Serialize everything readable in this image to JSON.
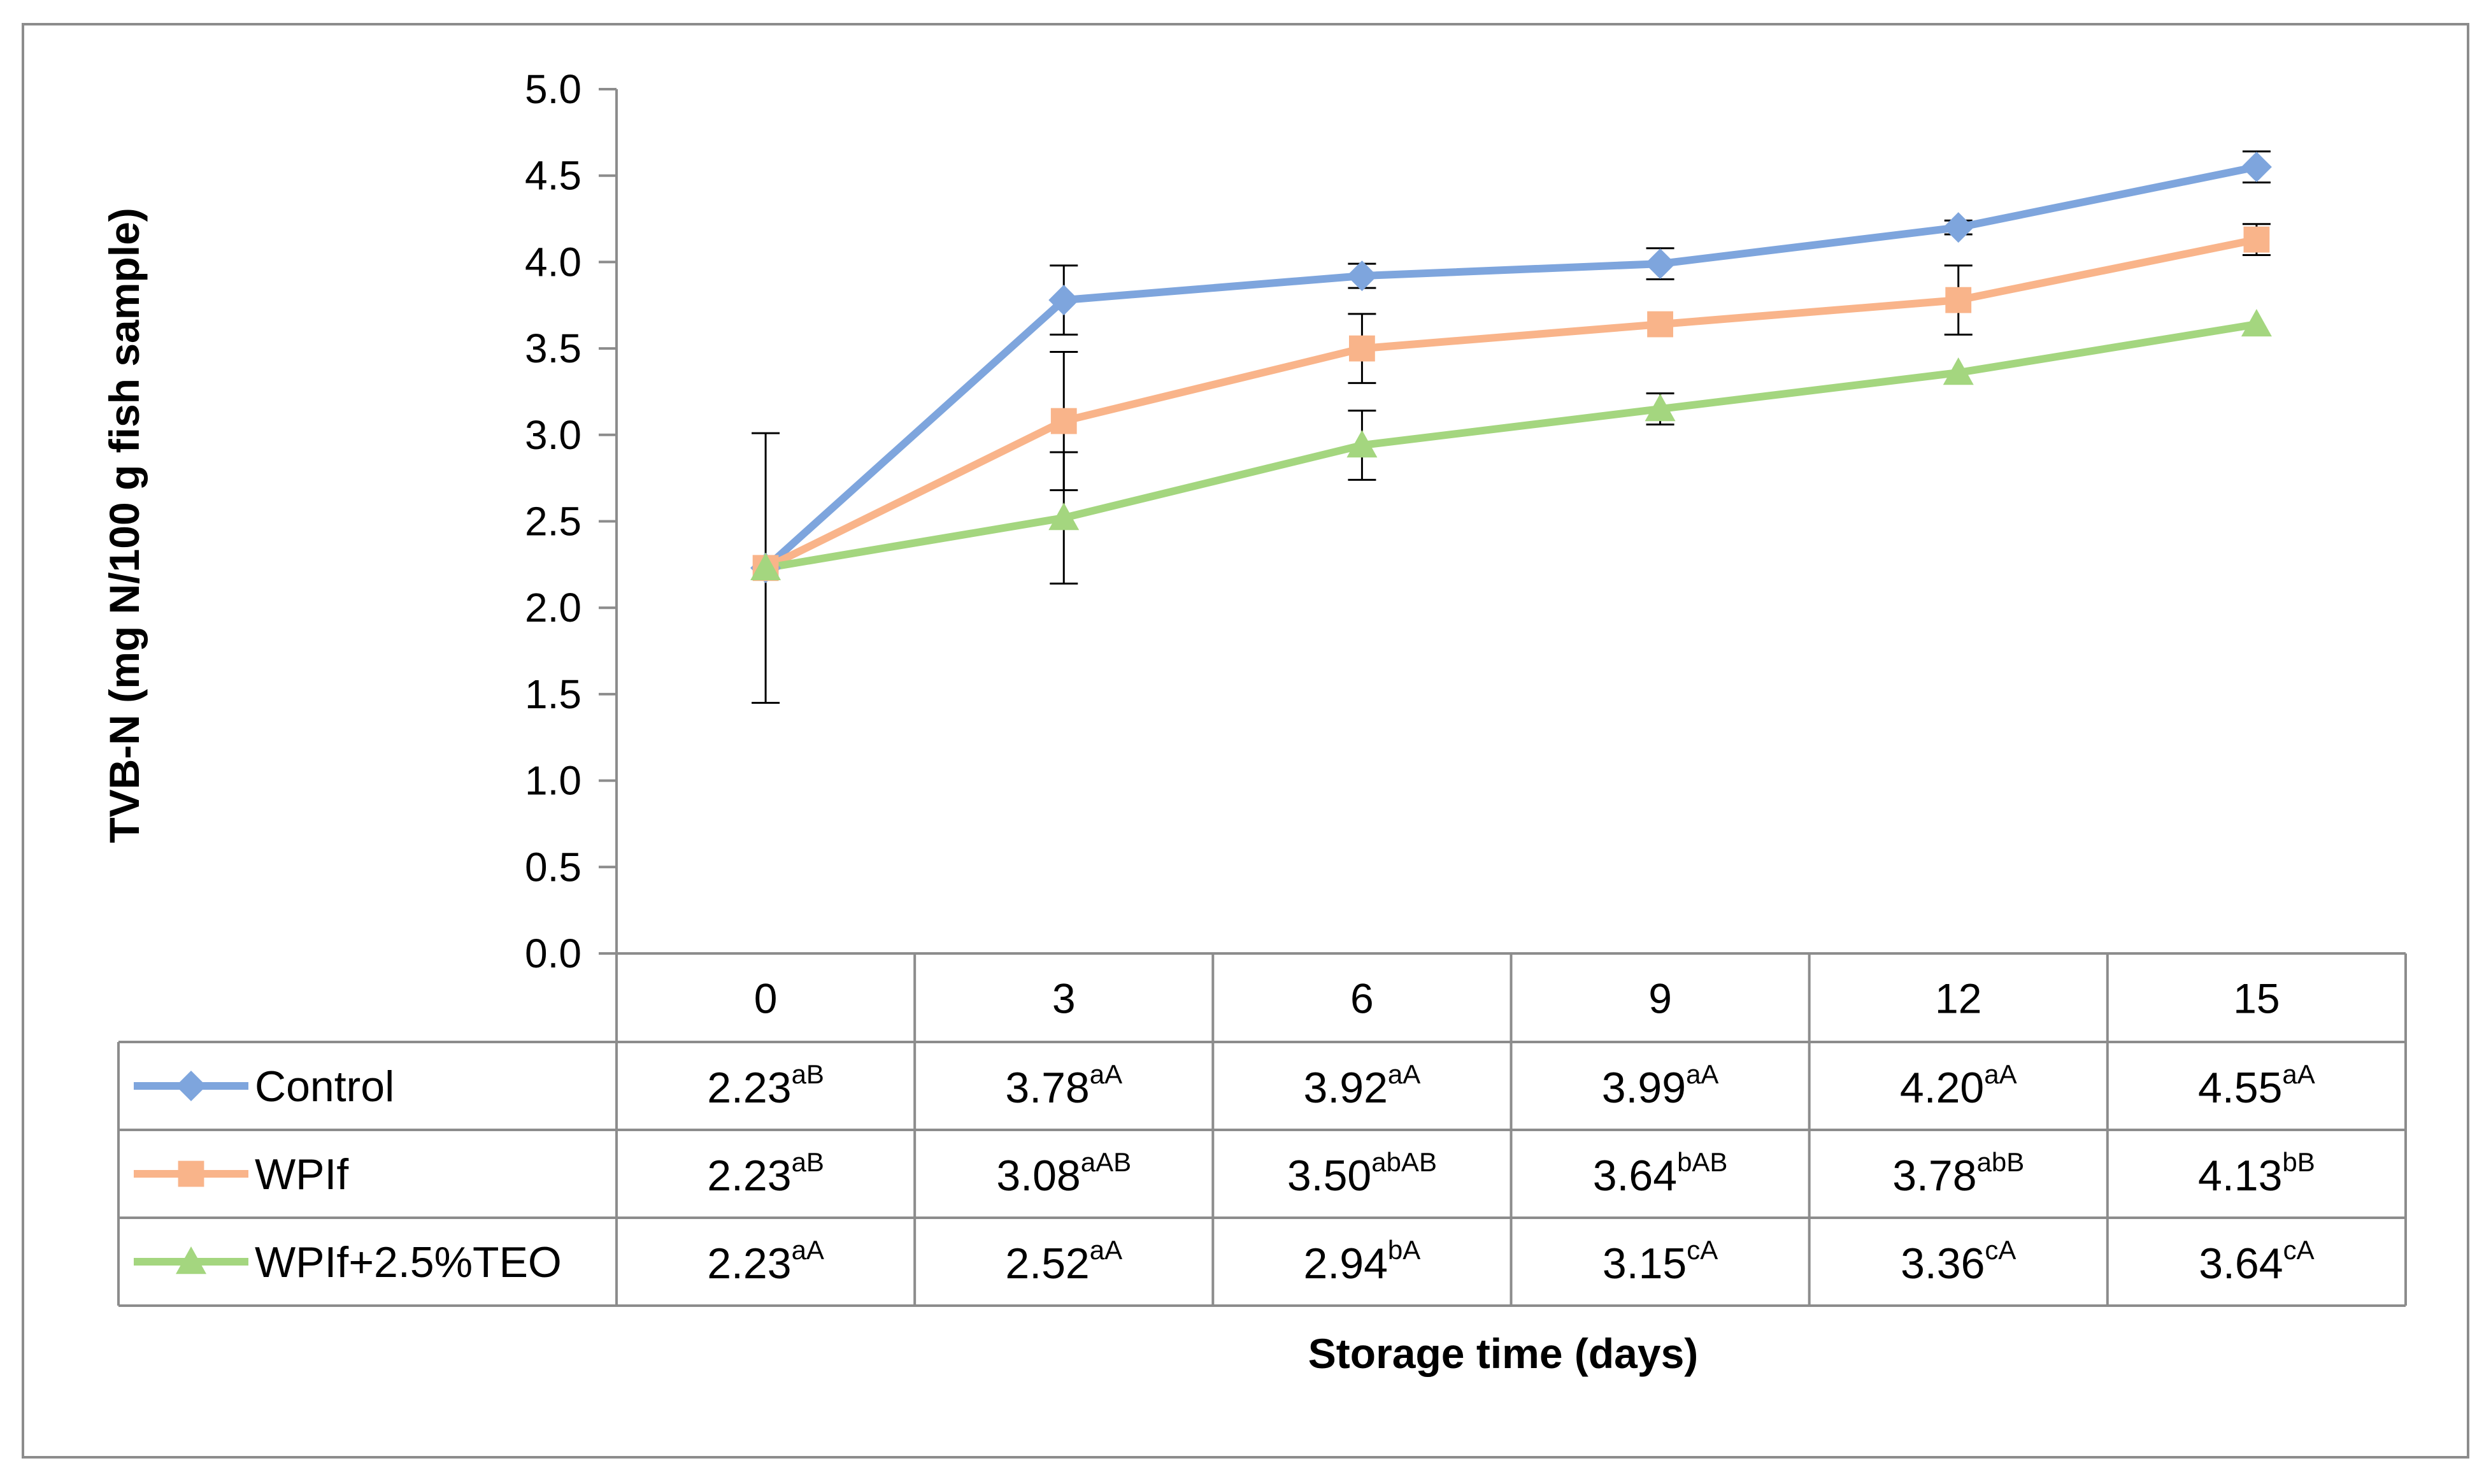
{
  "chart_data": {
    "type": "line",
    "ylabel": "TVB-N (mg N/100 g fish sample)",
    "xlabel": "Storage time (days)",
    "categories": [
      "0",
      "3",
      "6",
      "9",
      "12",
      "15"
    ],
    "ylim": [
      0,
      5
    ],
    "y_ticks": [
      "0.0",
      "0.5",
      "1.0",
      "1.5",
      "2.0",
      "2.5",
      "3.0",
      "3.5",
      "4.0",
      "4.5",
      "5.0"
    ],
    "grid": false,
    "legend": "data-table",
    "series": [
      {
        "name": "Control",
        "color": "#7ea5dd",
        "marker": "diamond",
        "values": [
          2.23,
          3.78,
          3.92,
          3.99,
          4.2,
          4.55
        ],
        "error": [
          0.78,
          0.2,
          0.07,
          0.09,
          0.04,
          0.09
        ],
        "table_values": [
          "2.23",
          "3.78",
          "3.92",
          "3.99",
          "4.20",
          "4.55"
        ],
        "superscripts": [
          "aB",
          "aA",
          "aA",
          "aA",
          "aA",
          "aA"
        ]
      },
      {
        "name": "WPIf",
        "color": "#f9b48a",
        "marker": "square",
        "values": [
          2.23,
          3.08,
          3.5,
          3.64,
          3.78,
          4.13
        ],
        "error": [
          0.0,
          0.4,
          0.2,
          0.0,
          0.2,
          0.09
        ],
        "table_values": [
          "2.23",
          "3.08",
          "3.50",
          "3.64",
          "3.78",
          "4.13"
        ],
        "superscripts": [
          "aB",
          "aAB",
          "abAB",
          "bAB",
          "abB",
          "bB"
        ]
      },
      {
        "name": "WPIf+2.5%TEO",
        "color": "#a4d67f",
        "marker": "triangle",
        "values": [
          2.23,
          2.52,
          2.94,
          3.15,
          3.36,
          3.64
        ],
        "error": [
          0.0,
          0.38,
          0.2,
          0.09,
          0.0,
          0.0
        ],
        "table_values": [
          "2.23",
          "2.52",
          "2.94",
          "3.15",
          "3.36",
          "3.64"
        ],
        "superscripts": [
          "aA",
          "aA",
          "bA",
          "cA",
          "cA",
          "cA"
        ]
      }
    ]
  }
}
